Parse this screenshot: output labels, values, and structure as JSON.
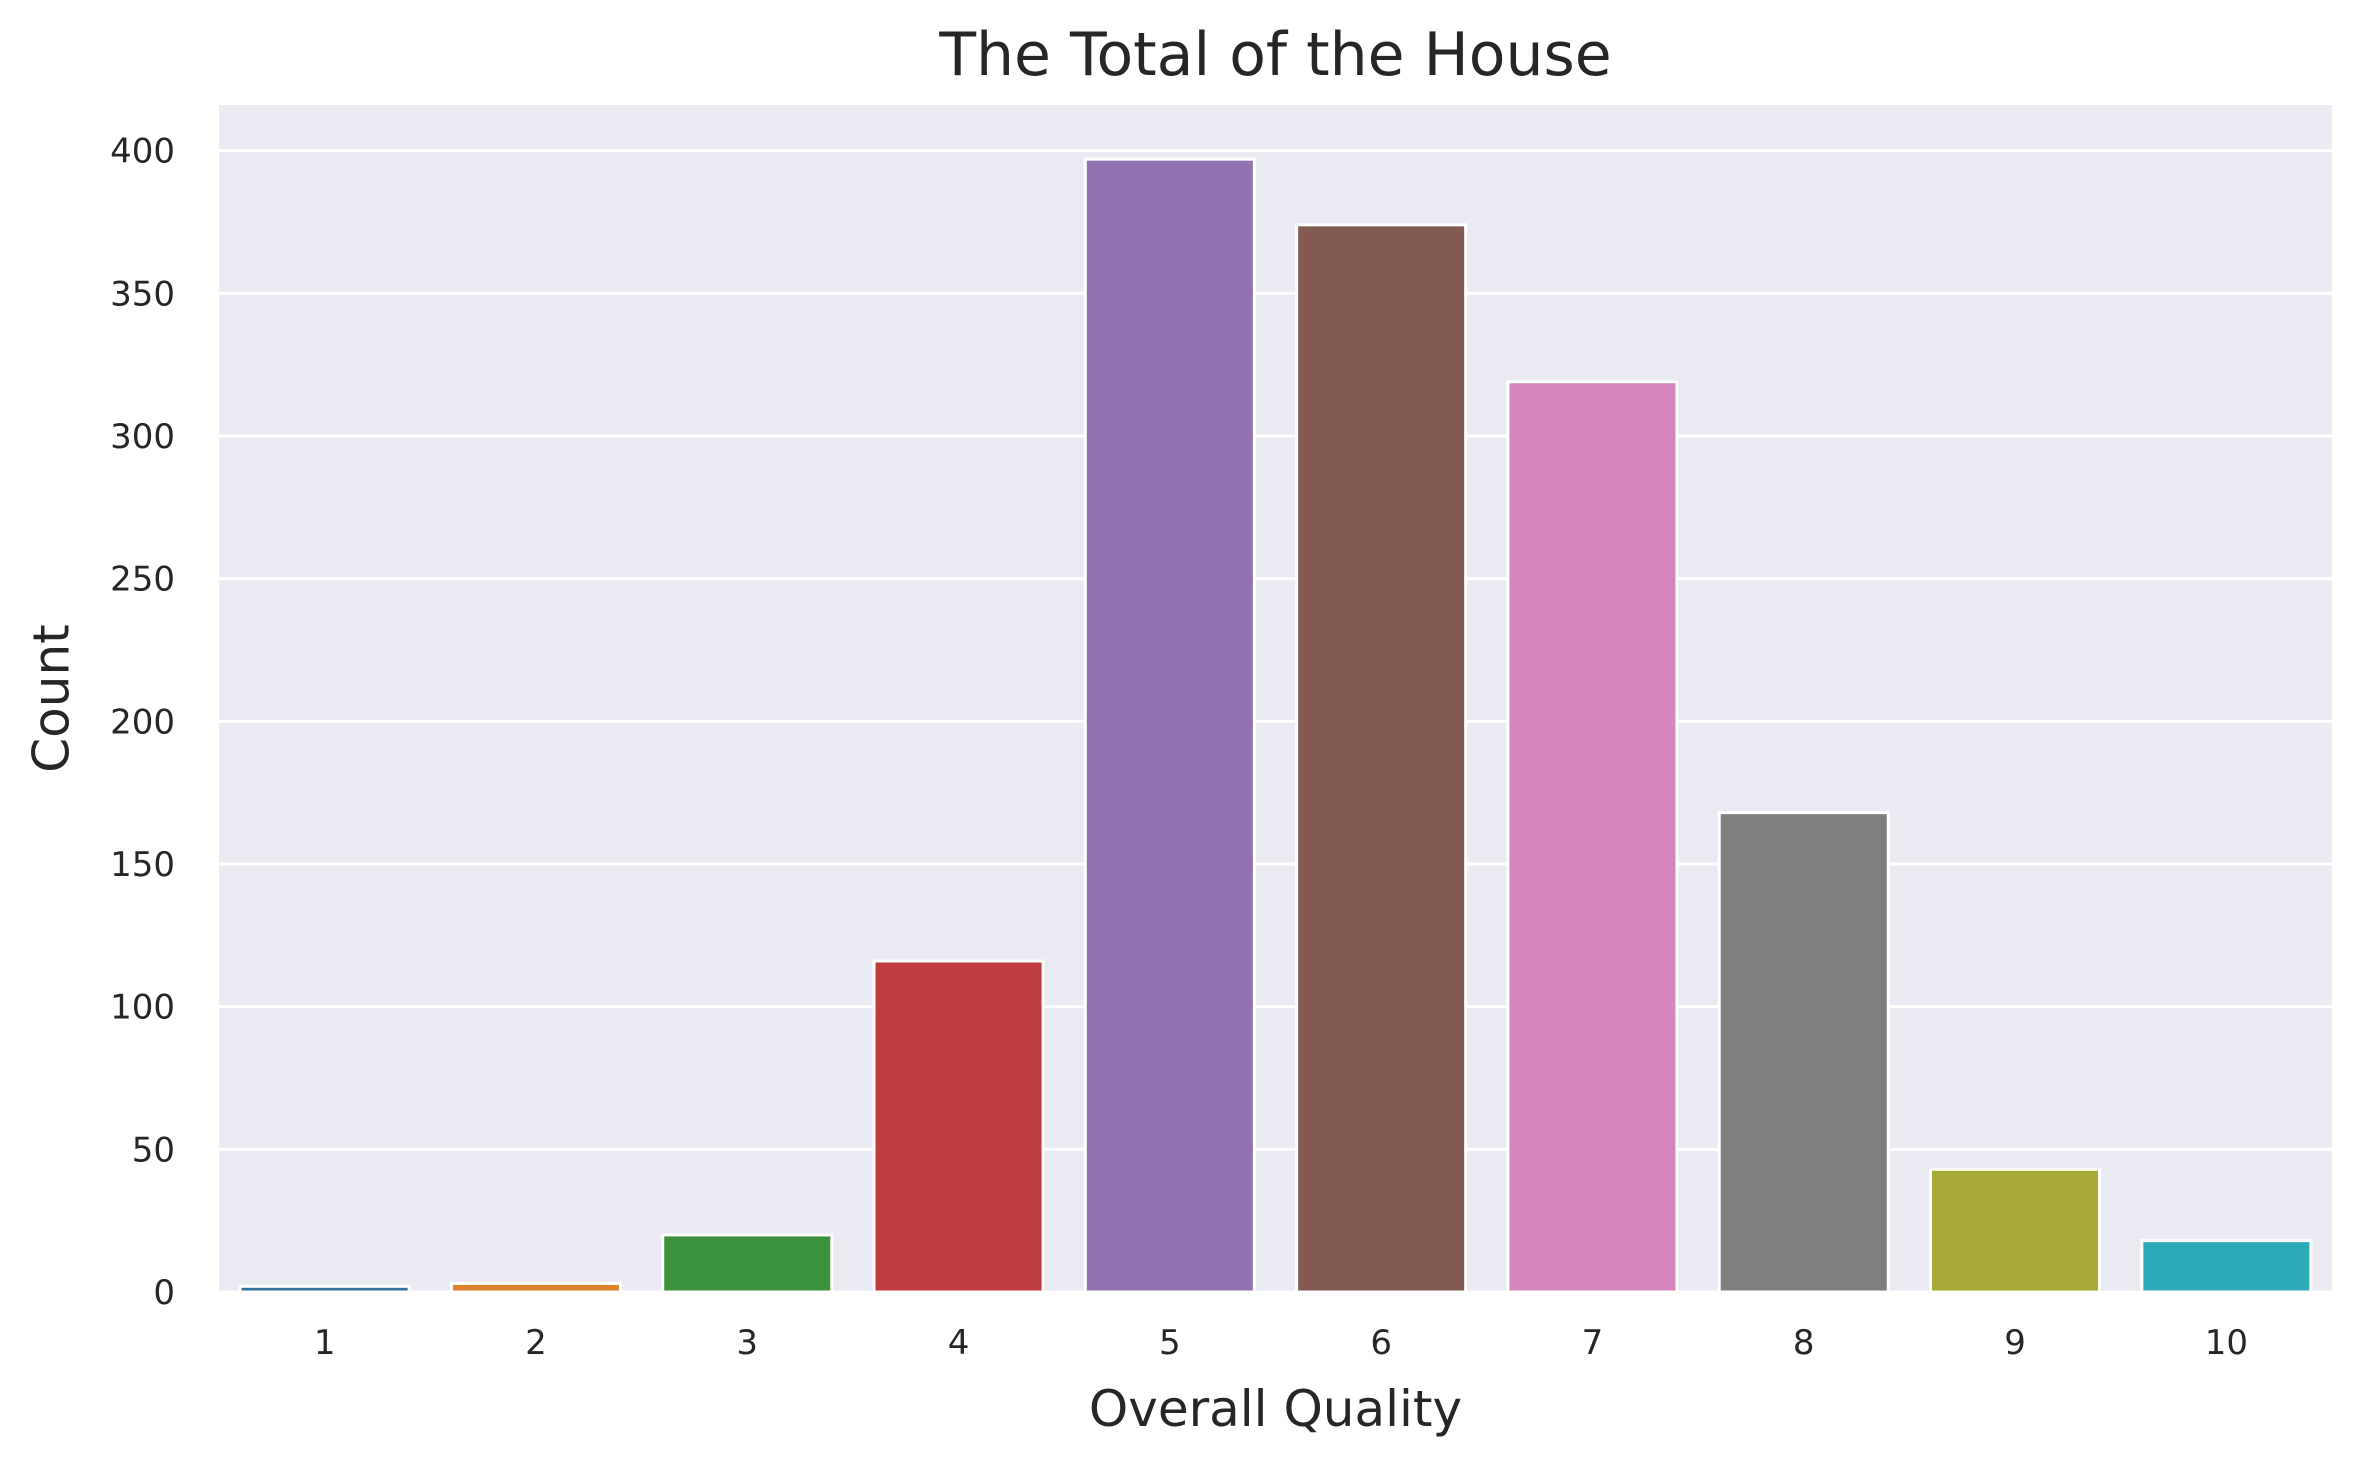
{
  "chart_data": {
    "type": "bar",
    "title": "The Total of the House",
    "xlabel": "Overall Quality",
    "ylabel": "Count",
    "categories": [
      "1",
      "2",
      "3",
      "4",
      "5",
      "6",
      "7",
      "8",
      "9",
      "10"
    ],
    "values": [
      2,
      3,
      20,
      116,
      397,
      374,
      319,
      168,
      43,
      18
    ],
    "ylim": [
      0,
      416
    ],
    "yticks": [
      0,
      50,
      100,
      150,
      200,
      250,
      300,
      350,
      400
    ],
    "grid": true,
    "legend": "none",
    "colors": [
      "#3274a1",
      "#e1812c",
      "#3a923a",
      "#c03d3e",
      "#9372b2",
      "#845b53",
      "#d684bd",
      "#7f7f7f",
      "#a9aa35",
      "#2eabb8"
    ],
    "background": "#eaeaf2",
    "grid_color": "#ffffff"
  }
}
